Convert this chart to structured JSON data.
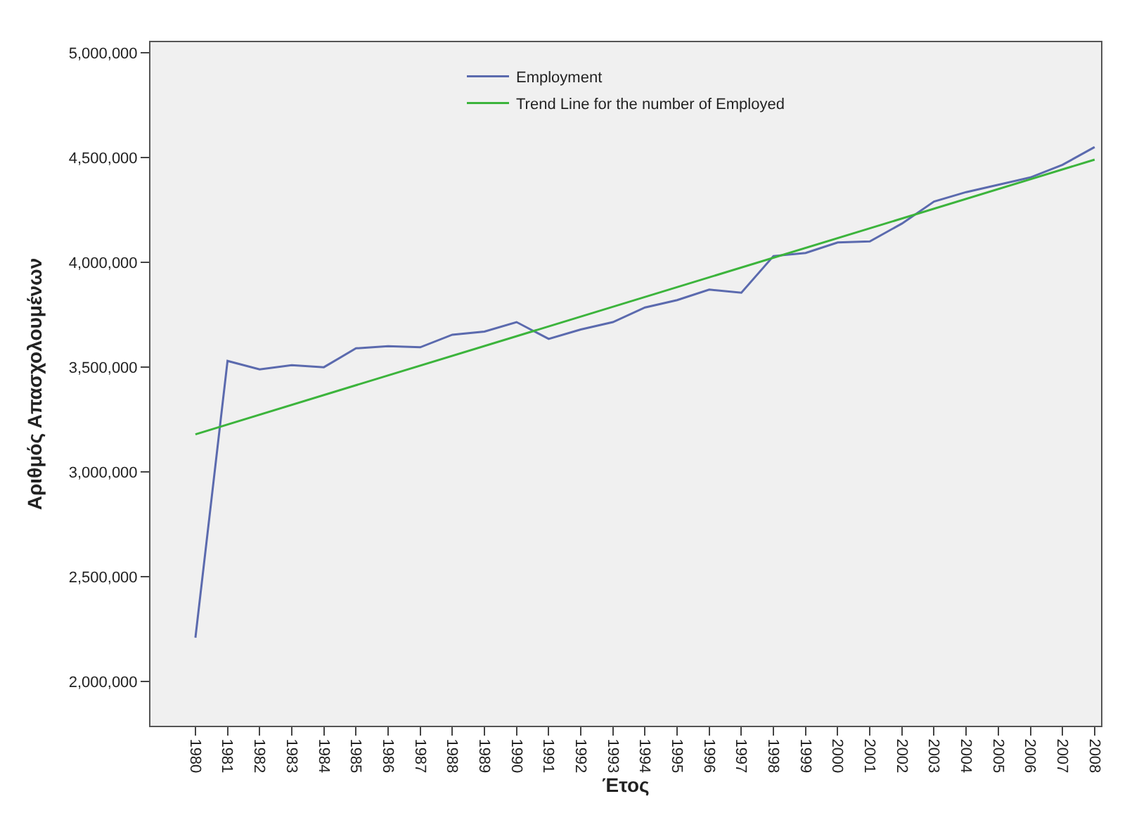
{
  "chart_data": {
    "type": "line",
    "xlabel": "Έτος",
    "ylabel": "Αριθμός Απασχολουμένων",
    "x": [
      1980,
      1981,
      1982,
      1983,
      1984,
      1985,
      1986,
      1987,
      1988,
      1989,
      1990,
      1991,
      1992,
      1993,
      1994,
      1995,
      1996,
      1997,
      1998,
      1999,
      2000,
      2001,
      2002,
      2003,
      2004,
      2005,
      2006,
      2007,
      2008
    ],
    "series": [
      {
        "name": "Employment",
        "color": "#5b6aae",
        "values": [
          2210000,
          3530000,
          3490000,
          3510000,
          3500000,
          3590000,
          3600000,
          3595000,
          3655000,
          3670000,
          3715000,
          3635000,
          3680000,
          3715000,
          3785000,
          3820000,
          3870000,
          3855000,
          4030000,
          4045000,
          4095000,
          4100000,
          4185000,
          4290000,
          4335000,
          4370000,
          4405000,
          4465000,
          4550000
        ]
      },
      {
        "name": "Trend Line for the number of Employed",
        "color": "#3cb43c",
        "type": "line",
        "x": [
          1980,
          2008
        ],
        "values": [
          3180000,
          4490000
        ]
      }
    ],
    "xlim": [
      1978.6,
      2008.2
    ],
    "xticks": [
      1980,
      1981,
      1982,
      1983,
      1984,
      1985,
      1986,
      1987,
      1988,
      1989,
      1990,
      1991,
      1992,
      1993,
      1994,
      1995,
      1996,
      1997,
      1998,
      1999,
      2000,
      2001,
      2002,
      2003,
      2004,
      2005,
      2006,
      2007,
      2008
    ],
    "ylim": [
      1790000,
      5050000
    ],
    "yticks": [
      {
        "value": 2000000,
        "label": "2,000,000"
      },
      {
        "value": 2500000,
        "label": "2,500,000"
      },
      {
        "value": 3000000,
        "label": "3,000,000"
      },
      {
        "value": 3500000,
        "label": "3,500,000"
      },
      {
        "value": 4000000,
        "label": "4,000,000"
      },
      {
        "value": 4500000,
        "label": "4,500,000"
      },
      {
        "value": 5000000,
        "label": "5,000,000"
      }
    ],
    "grid": false,
    "legend": "top",
    "marker": "none",
    "line_style": "solid"
  }
}
